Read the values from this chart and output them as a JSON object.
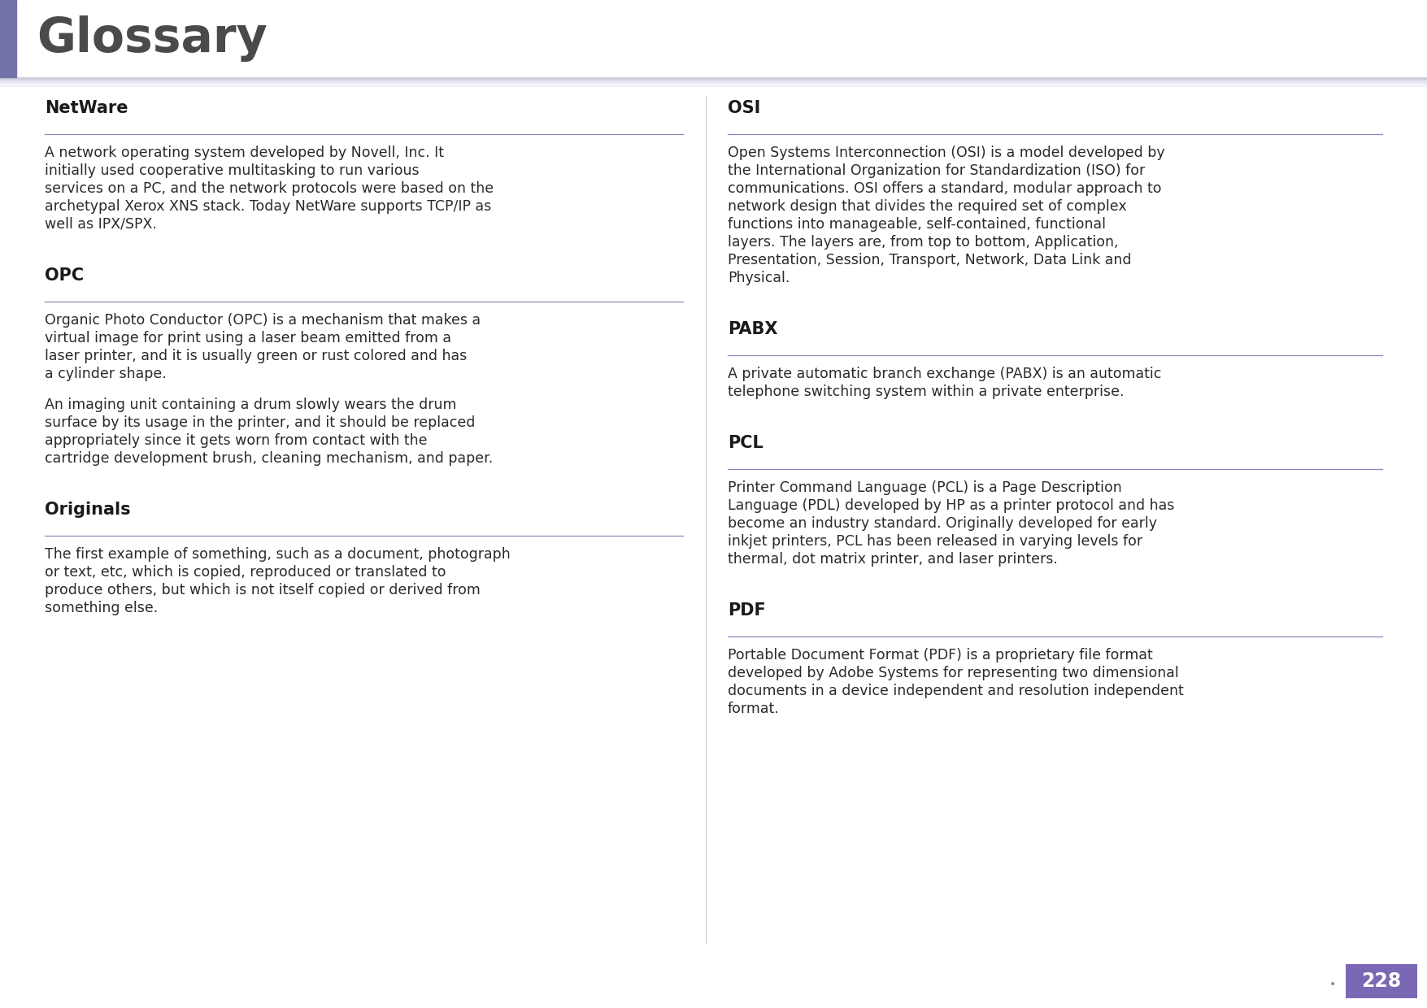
{
  "title": "Glossary",
  "title_color": "#4a4a4a",
  "title_bar_color": "#7272aa",
  "background_color": "#ffffff",
  "page_number": "228",
  "page_number_bg": "#7B68B5",
  "page_number_color": "#ffffff",
  "section_line_color": "#8888bb",
  "header_line_color": "#b0b0cc",
  "left_entries": [
    {
      "term": "NetWare",
      "body": "A network operating system developed by Novell, Inc. It initially used cooperative multitasking to run various services on a PC, and the network protocols were based on the archetypal Xerox XNS stack. Today NetWare supports TCP/IP as well as IPX/SPX."
    },
    {
      "term": "OPC",
      "body": "Organic Photo Conductor (OPC) is a mechanism that makes a virtual image for print using a laser beam emitted from a laser printer, and it is usually green or rust colored and has a cylinder shape.\n\nAn imaging unit containing a drum slowly wears the drum surface by its usage in the printer, and it should be replaced appropriately since it gets worn from contact with the cartridge development brush, cleaning mechanism, and paper."
    },
    {
      "term": "Originals",
      "body": "The first example of something, such as a document, photograph or text, etc, which is copied, reproduced or translated to produce others, but which is not itself copied or derived from something else."
    }
  ],
  "right_entries": [
    {
      "term": "OSI",
      "body": "Open Systems Interconnection (OSI) is a model developed by the International Organization for Standardization (ISO) for communications. OSI offers a standard, modular approach to network design that divides the required set of complex functions into manageable, self-contained, functional layers. The layers are, from top to bottom, Application, Presentation, Session, Transport, Network, Data Link and Physical."
    },
    {
      "term": "PABX",
      "body": "A private automatic branch exchange (PABX) is an automatic telephone switching system within a private enterprise."
    },
    {
      "term": "PCL",
      "body": "Printer Command Language (PCL) is a Page Description Language (PDL) developed by HP as a printer protocol and has become an industry standard. Originally developed for early inkjet printers, PCL has been released in varying levels for thermal, dot matrix printer, and laser printers."
    },
    {
      "term": "PDF",
      "body": "Portable Document Format (PDF) is a proprietary file format developed by Adobe Systems for representing two dimensional documents in a device independent and resolution independent format."
    }
  ],
  "title_fontsize": 42,
  "term_fontsize": 15,
  "body_fontsize": 12.5,
  "page_num_fontsize": 17
}
